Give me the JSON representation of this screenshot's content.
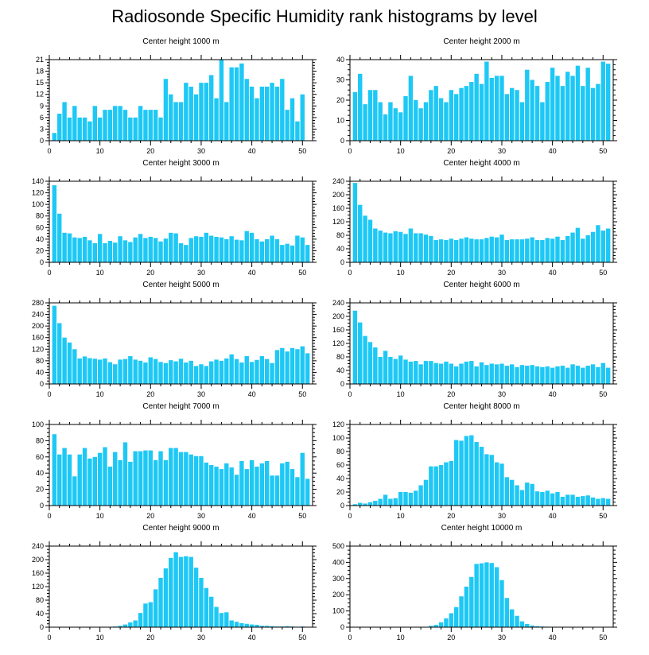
{
  "title": "Radiosonde Specific Humidity rank histograms by level",
  "colors": {
    "bar": "#1ec8f5",
    "axis": "#000000"
  },
  "chart_data": [
    {
      "type": "bar",
      "title": "Center height 1000 m",
      "xlabel": "",
      "ylabel": "",
      "xlim": [
        0,
        52
      ],
      "ylim": [
        0,
        21
      ],
      "xticks": [
        0,
        10,
        20,
        30,
        40,
        50
      ],
      "yticks": [
        0,
        3,
        6,
        9,
        12,
        15,
        18,
        21
      ],
      "x": [
        1,
        2,
        3,
        4,
        5,
        6,
        7,
        8,
        9,
        10,
        11,
        12,
        13,
        14,
        15,
        16,
        17,
        18,
        19,
        20,
        21,
        22,
        23,
        24,
        25,
        26,
        27,
        28,
        29,
        30,
        31,
        32,
        33,
        34,
        35,
        36,
        37,
        38,
        39,
        40,
        41,
        42,
        43,
        44,
        45,
        46,
        47,
        48,
        49,
        50,
        51
      ],
      "values": [
        2,
        7,
        10,
        6,
        9,
        6,
        6,
        5,
        9,
        6,
        8,
        8,
        9,
        9,
        8,
        6,
        6,
        9,
        8,
        8,
        8,
        6,
        16,
        12,
        10,
        10,
        15,
        14,
        12,
        15,
        15,
        17,
        11,
        21,
        10,
        19,
        19,
        20,
        16,
        14,
        11,
        14,
        14,
        15,
        14,
        16,
        8,
        11,
        5,
        12,
        0
      ]
    },
    {
      "type": "bar",
      "title": "Center height 2000 m",
      "xlabel": "",
      "ylabel": "",
      "xlim": [
        0,
        52
      ],
      "ylim": [
        0,
        40
      ],
      "xticks": [
        0,
        10,
        20,
        30,
        40,
        50
      ],
      "yticks": [
        0,
        10,
        20,
        30,
        40
      ],
      "x": [
        1,
        2,
        3,
        4,
        5,
        6,
        7,
        8,
        9,
        10,
        11,
        12,
        13,
        14,
        15,
        16,
        17,
        18,
        19,
        20,
        21,
        22,
        23,
        24,
        25,
        26,
        27,
        28,
        29,
        30,
        31,
        32,
        33,
        34,
        35,
        36,
        37,
        38,
        39,
        40,
        41,
        42,
        43,
        44,
        45,
        46,
        47,
        48,
        49,
        50,
        51
      ],
      "values": [
        24,
        33,
        18,
        25,
        25,
        19,
        13,
        19,
        16,
        14,
        22,
        32,
        20,
        16,
        19,
        25,
        27,
        21,
        19,
        25,
        23,
        26,
        27,
        29,
        33,
        28,
        39,
        31,
        32,
        32,
        23,
        26,
        25,
        19,
        35,
        30,
        27,
        19,
        29,
        36,
        32,
        27,
        34,
        32,
        37,
        27,
        36,
        26,
        28,
        39,
        38
      ]
    },
    {
      "type": "bar",
      "title": "Center height 3000 m",
      "xlabel": "",
      "ylabel": "",
      "xlim": [
        0,
        52
      ],
      "ylim": [
        0,
        140
      ],
      "xticks": [
        0,
        10,
        20,
        30,
        40,
        50
      ],
      "yticks": [
        0,
        20,
        40,
        60,
        80,
        100,
        120,
        140
      ],
      "x": [
        1,
        2,
        3,
        4,
        5,
        6,
        7,
        8,
        9,
        10,
        11,
        12,
        13,
        14,
        15,
        16,
        17,
        18,
        19,
        20,
        21,
        22,
        23,
        24,
        25,
        26,
        27,
        28,
        29,
        30,
        31,
        32,
        33,
        34,
        35,
        36,
        37,
        38,
        39,
        40,
        41,
        42,
        43,
        44,
        45,
        46,
        47,
        48,
        49,
        50,
        51
      ],
      "values": [
        133,
        84,
        51,
        50,
        43,
        42,
        44,
        38,
        33,
        49,
        33,
        37,
        34,
        45,
        38,
        35,
        43,
        49,
        42,
        44,
        42,
        36,
        41,
        51,
        50,
        33,
        30,
        42,
        45,
        44,
        51,
        46,
        44,
        43,
        40,
        45,
        39,
        38,
        54,
        51,
        40,
        36,
        40,
        46,
        40,
        30,
        32,
        29,
        46,
        43,
        30
      ]
    },
    {
      "type": "bar",
      "title": "Center height 4000 m",
      "xlabel": "",
      "ylabel": "",
      "xlim": [
        0,
        52
      ],
      "ylim": [
        0,
        240
      ],
      "xticks": [
        0,
        10,
        20,
        30,
        40,
        50
      ],
      "yticks": [
        0,
        40,
        80,
        120,
        160,
        200,
        240
      ],
      "x": [
        1,
        2,
        3,
        4,
        5,
        6,
        7,
        8,
        9,
        10,
        11,
        12,
        13,
        14,
        15,
        16,
        17,
        18,
        19,
        20,
        21,
        22,
        23,
        24,
        25,
        26,
        27,
        28,
        29,
        30,
        31,
        32,
        33,
        34,
        35,
        36,
        37,
        38,
        39,
        40,
        41,
        42,
        43,
        44,
        45,
        46,
        47,
        48,
        49,
        50,
        51
      ],
      "values": [
        235,
        170,
        138,
        126,
        100,
        94,
        88,
        86,
        92,
        90,
        84,
        100,
        86,
        86,
        82,
        78,
        66,
        68,
        66,
        70,
        66,
        70,
        74,
        70,
        68,
        68,
        72,
        76,
        74,
        82,
        66,
        68,
        68,
        68,
        70,
        74,
        66,
        66,
        72,
        70,
        76,
        66,
        78,
        88,
        102,
        70,
        80,
        90,
        110,
        94,
        100
      ]
    },
    {
      "type": "bar",
      "title": "Center height 5000 m",
      "xlabel": "",
      "ylabel": "",
      "xlim": [
        0,
        52
      ],
      "ylim": [
        0,
        280
      ],
      "xticks": [
        0,
        10,
        20,
        30,
        40,
        50
      ],
      "yticks": [
        0,
        40,
        80,
        120,
        160,
        200,
        240,
        280
      ],
      "x": [
        1,
        2,
        3,
        4,
        5,
        6,
        7,
        8,
        9,
        10,
        11,
        12,
        13,
        14,
        15,
        16,
        17,
        18,
        19,
        20,
        21,
        22,
        23,
        24,
        25,
        26,
        27,
        28,
        29,
        30,
        31,
        32,
        33,
        34,
        35,
        36,
        37,
        38,
        39,
        40,
        41,
        42,
        43,
        44,
        45,
        46,
        47,
        48,
        49,
        50,
        51
      ],
      "values": [
        270,
        210,
        160,
        143,
        120,
        88,
        95,
        89,
        87,
        84,
        88,
        75,
        68,
        84,
        86,
        96,
        84,
        80,
        74,
        92,
        86,
        76,
        72,
        82,
        78,
        87,
        74,
        80,
        62,
        68,
        62,
        78,
        84,
        80,
        88,
        102,
        86,
        74,
        96,
        76,
        83,
        96,
        86,
        72,
        117,
        124,
        112,
        124,
        120,
        130,
        106
      ]
    },
    {
      "type": "bar",
      "title": "Center height 6000 m",
      "xlabel": "",
      "ylabel": "",
      "xlim": [
        0,
        52
      ],
      "ylim": [
        0,
        240
      ],
      "xticks": [
        0,
        10,
        20,
        30,
        40,
        50
      ],
      "yticks": [
        0,
        40,
        80,
        120,
        160,
        200,
        240
      ],
      "x": [
        1,
        2,
        3,
        4,
        5,
        6,
        7,
        8,
        9,
        10,
        11,
        12,
        13,
        14,
        15,
        16,
        17,
        18,
        19,
        20,
        21,
        22,
        23,
        24,
        25,
        26,
        27,
        28,
        29,
        30,
        31,
        32,
        33,
        34,
        35,
        36,
        37,
        38,
        39,
        40,
        41,
        42,
        43,
        44,
        45,
        46,
        47,
        48,
        49,
        50,
        51
      ],
      "values": [
        217,
        182,
        142,
        124,
        108,
        80,
        98,
        80,
        74,
        84,
        72,
        66,
        68,
        58,
        68,
        68,
        62,
        60,
        66,
        60,
        52,
        60,
        66,
        68,
        52,
        64,
        56,
        60,
        58,
        60,
        54,
        58,
        50,
        56,
        54,
        56,
        52,
        50,
        52,
        48,
        52,
        54,
        48,
        58,
        54,
        48,
        54,
        58,
        50,
        62,
        48
      ]
    },
    {
      "type": "bar",
      "title": "Center height 7000 m",
      "xlabel": "",
      "ylabel": "",
      "xlim": [
        0,
        52
      ],
      "ylim": [
        0,
        100
      ],
      "xticks": [
        0,
        10,
        20,
        30,
        40,
        50
      ],
      "yticks": [
        0,
        20,
        40,
        60,
        80,
        100
      ],
      "x": [
        1,
        2,
        3,
        4,
        5,
        6,
        7,
        8,
        9,
        10,
        11,
        12,
        13,
        14,
        15,
        16,
        17,
        18,
        19,
        20,
        21,
        22,
        23,
        24,
        25,
        26,
        27,
        28,
        29,
        30,
        31,
        32,
        33,
        34,
        35,
        36,
        37,
        38,
        39,
        40,
        41,
        42,
        43,
        44,
        45,
        46,
        47,
        48,
        49,
        50,
        51
      ],
      "values": [
        88,
        63,
        71,
        63,
        36,
        63,
        71,
        58,
        60,
        65,
        72,
        48,
        66,
        56,
        78,
        54,
        67,
        67,
        68,
        68,
        56,
        67,
        56,
        71,
        71,
        66,
        66,
        63,
        61,
        61,
        53,
        50,
        48,
        45,
        52,
        47,
        38,
        55,
        45,
        56,
        48,
        52,
        55,
        37,
        37,
        52,
        54,
        45,
        35,
        65,
        33
      ]
    },
    {
      "type": "bar",
      "title": "Center height 8000 m",
      "xlabel": "",
      "ylabel": "",
      "xlim": [
        0,
        52
      ],
      "ylim": [
        0,
        120
      ],
      "xticks": [
        0,
        10,
        20,
        30,
        40,
        50
      ],
      "yticks": [
        0,
        20,
        40,
        60,
        80,
        100,
        120
      ],
      "x": [
        1,
        2,
        3,
        4,
        5,
        6,
        7,
        8,
        9,
        10,
        11,
        12,
        13,
        14,
        15,
        16,
        17,
        18,
        19,
        20,
        21,
        22,
        23,
        24,
        25,
        26,
        27,
        28,
        29,
        30,
        31,
        32,
        33,
        34,
        35,
        36,
        37,
        38,
        39,
        40,
        41,
        42,
        43,
        44,
        45,
        46,
        47,
        48,
        49,
        50,
        51
      ],
      "values": [
        2,
        4,
        3,
        5,
        7,
        10,
        16,
        10,
        11,
        20,
        20,
        19,
        22,
        30,
        38,
        58,
        58,
        60,
        64,
        66,
        97,
        96,
        103,
        104,
        94,
        87,
        76,
        75,
        64,
        62,
        42,
        38,
        30,
        23,
        34,
        32,
        21,
        20,
        22,
        18,
        20,
        13,
        16,
        16,
        13,
        14,
        15,
        12,
        10,
        11,
        10
      ]
    },
    {
      "type": "bar",
      "title": "Center height 9000 m",
      "xlabel": "",
      "ylabel": "",
      "xlim": [
        0,
        52
      ],
      "ylim": [
        0,
        240
      ],
      "xticks": [
        0,
        10,
        20,
        30,
        40,
        50
      ],
      "yticks": [
        0,
        40,
        80,
        120,
        160,
        200,
        240
      ],
      "x": [
        1,
        2,
        3,
        4,
        5,
        6,
        7,
        8,
        9,
        10,
        11,
        12,
        13,
        14,
        15,
        16,
        17,
        18,
        19,
        20,
        21,
        22,
        23,
        24,
        25,
        26,
        27,
        28,
        29,
        30,
        31,
        32,
        33,
        34,
        35,
        36,
        37,
        38,
        39,
        40,
        41,
        42,
        43,
        44,
        45,
        46,
        47,
        48,
        49,
        50,
        51
      ],
      "values": [
        0,
        0,
        0,
        0,
        0,
        0,
        0,
        0,
        0,
        0,
        0,
        1,
        2,
        4,
        8,
        14,
        20,
        42,
        70,
        74,
        112,
        146,
        174,
        205,
        222,
        208,
        210,
        208,
        176,
        146,
        116,
        90,
        60,
        42,
        44,
        20,
        16,
        12,
        10,
        8,
        7,
        4,
        4,
        3,
        2,
        2,
        3,
        2,
        1,
        2,
        1
      ]
    },
    {
      "type": "bar",
      "title": "Center height 10000 m",
      "xlabel": "",
      "ylabel": "",
      "xlim": [
        0,
        52
      ],
      "ylim": [
        0,
        500
      ],
      "xticks": [
        0,
        10,
        20,
        30,
        40,
        50
      ],
      "yticks": [
        0,
        100,
        200,
        300,
        400,
        500
      ],
      "x": [
        1,
        2,
        3,
        4,
        5,
        6,
        7,
        8,
        9,
        10,
        11,
        12,
        13,
        14,
        15,
        16,
        17,
        18,
        19,
        20,
        21,
        22,
        23,
        24,
        25,
        26,
        27,
        28,
        29,
        30,
        31,
        32,
        33,
        34,
        35,
        36,
        37,
        38,
        39,
        40,
        41,
        42,
        43,
        44,
        45,
        46,
        47,
        48,
        49,
        50,
        51
      ],
      "values": [
        0,
        0,
        0,
        0,
        0,
        0,
        0,
        0,
        0,
        0,
        0,
        0,
        0,
        0,
        2,
        8,
        14,
        30,
        54,
        86,
        124,
        190,
        250,
        310,
        390,
        394,
        400,
        396,
        370,
        290,
        180,
        110,
        70,
        36,
        20,
        10,
        6,
        4,
        3,
        2,
        2,
        1,
        1,
        1,
        0,
        0,
        0,
        0,
        0,
        0,
        0
      ]
    }
  ]
}
